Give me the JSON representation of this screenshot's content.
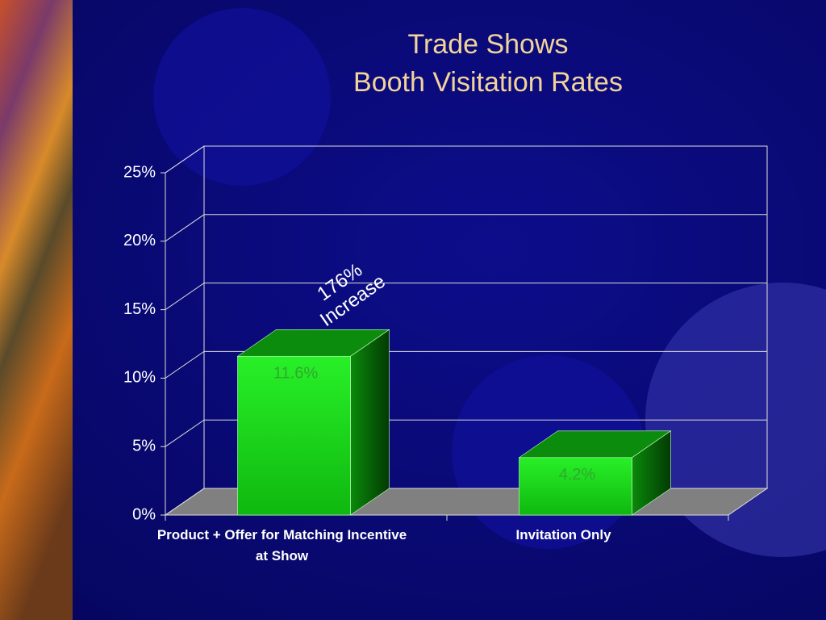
{
  "chart_data": {
    "type": "bar3d",
    "title": "Trade Shows",
    "subtitle": "Booth Visitation Rates",
    "annotation": [
      "176%",
      "Increase"
    ],
    "categories": [
      "Product + Offer for Matching Incentive at Show",
      "Invitation Only"
    ],
    "values": [
      11.6,
      4.2
    ],
    "value_labels": [
      "11.6%",
      "4.2%"
    ],
    "color": "#19d419",
    "ylim": [
      0,
      25
    ],
    "yticks": [
      {
        "value": 0,
        "label": "0%"
      },
      {
        "value": 5,
        "label": "5%"
      },
      {
        "value": 10,
        "label": "10%"
      },
      {
        "value": 15,
        "label": "15%"
      },
      {
        "value": 20,
        "label": "20%"
      },
      {
        "value": 25,
        "label": "25%"
      }
    ],
    "grid": true
  }
}
